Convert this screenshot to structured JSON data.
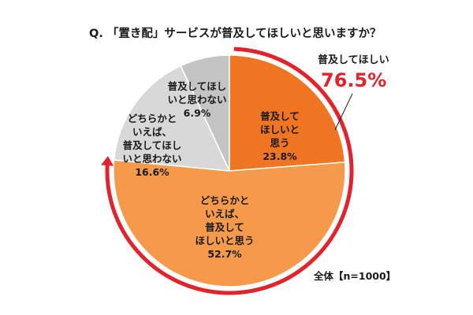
{
  "title": "Q. 「置き配」サービスが普及してほしいと思いますか？",
  "colors": {
    "accent_red": "#e3232b",
    "slice_want": "#f07523",
    "slice_somewhat_want": "#f59a4b",
    "slice_somewhat_not": "#d8d8d8",
    "slice_not": "#c4c4c4",
    "slice_border": "#ffffff"
  },
  "chart_data": {
    "type": "pie",
    "start": "12 o'clock",
    "direction": "clockwise",
    "slices": [
      {
        "label_lines": [
          "普及して",
          "ほしいと",
          "思う"
        ],
        "value": 23.8,
        "value_text": "23.8%",
        "color": "#f07523"
      },
      {
        "label_lines": [
          "どちらかと",
          "いえば、",
          "普及して",
          "ほしいと思う"
        ],
        "value": 52.7,
        "value_text": "52.7%",
        "color": "#f59a4b"
      },
      {
        "label_lines": [
          "どちらかと",
          "いえば、",
          "普及してほし",
          "いと思わない"
        ],
        "value": 16.6,
        "value_text": "16.6%",
        "color": "#d8d8d8"
      },
      {
        "label_lines": [
          "普及してほし",
          "いと思わない"
        ],
        "value": 6.9,
        "value_text": "6.9%",
        "color": "#c4c4c4"
      }
    ],
    "callout": {
      "label": "普及してほしい",
      "value": 76.5,
      "value_text": "76.5%",
      "spans": [
        "普及して ほしいと 思う",
        "どちらかと いえば、 普及して ほしいと思う"
      ]
    },
    "note": "全体【n=1000】"
  }
}
